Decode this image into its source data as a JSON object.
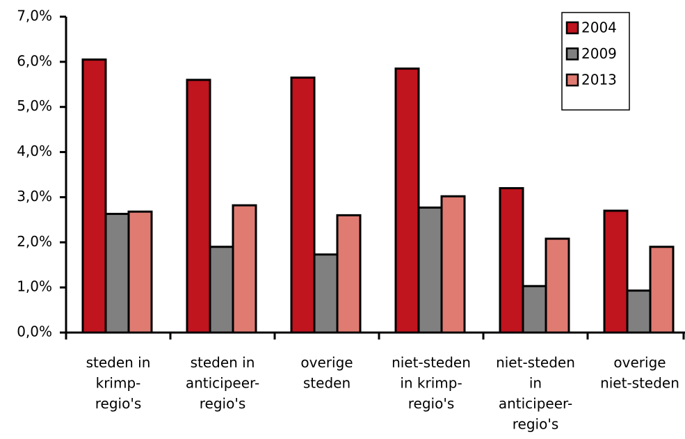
{
  "chart_data": {
    "type": "bar",
    "categories": [
      "steden in\nkrimp-\nregio's",
      "steden in\nanticipeer-\nregio's",
      "overige\nsteden",
      "niet-steden\nin krimp-\nregio's",
      "niet-steden\nin\nanticipeer-\nregio's",
      "overige\nniet-steden"
    ],
    "series": [
      {
        "name": "2004",
        "color": "#c0141e",
        "values": [
          6.05,
          5.6,
          5.65,
          5.85,
          3.2,
          2.7
        ]
      },
      {
        "name": "2009",
        "color": "#808080",
        "values": [
          2.63,
          1.9,
          1.73,
          2.77,
          1.03,
          0.93
        ]
      },
      {
        "name": "2013",
        "color": "#e07b72",
        "values": [
          2.68,
          2.82,
          2.6,
          3.02,
          2.08,
          1.9
        ]
      }
    ],
    "ylim": [
      0,
      7
    ],
    "yticks": [
      {
        "value": 0,
        "label": "0,0%"
      },
      {
        "value": 1,
        "label": "1,0%"
      },
      {
        "value": 2,
        "label": "2,0%"
      },
      {
        "value": 3,
        "label": "3,0%"
      },
      {
        "value": 4,
        "label": "4,0%"
      },
      {
        "value": 5,
        "label": "5,0%"
      },
      {
        "value": 6,
        "label": "6,0%"
      },
      {
        "value": 7,
        "label": "7,0%"
      }
    ],
    "legend": "top-right",
    "grid": false
  }
}
